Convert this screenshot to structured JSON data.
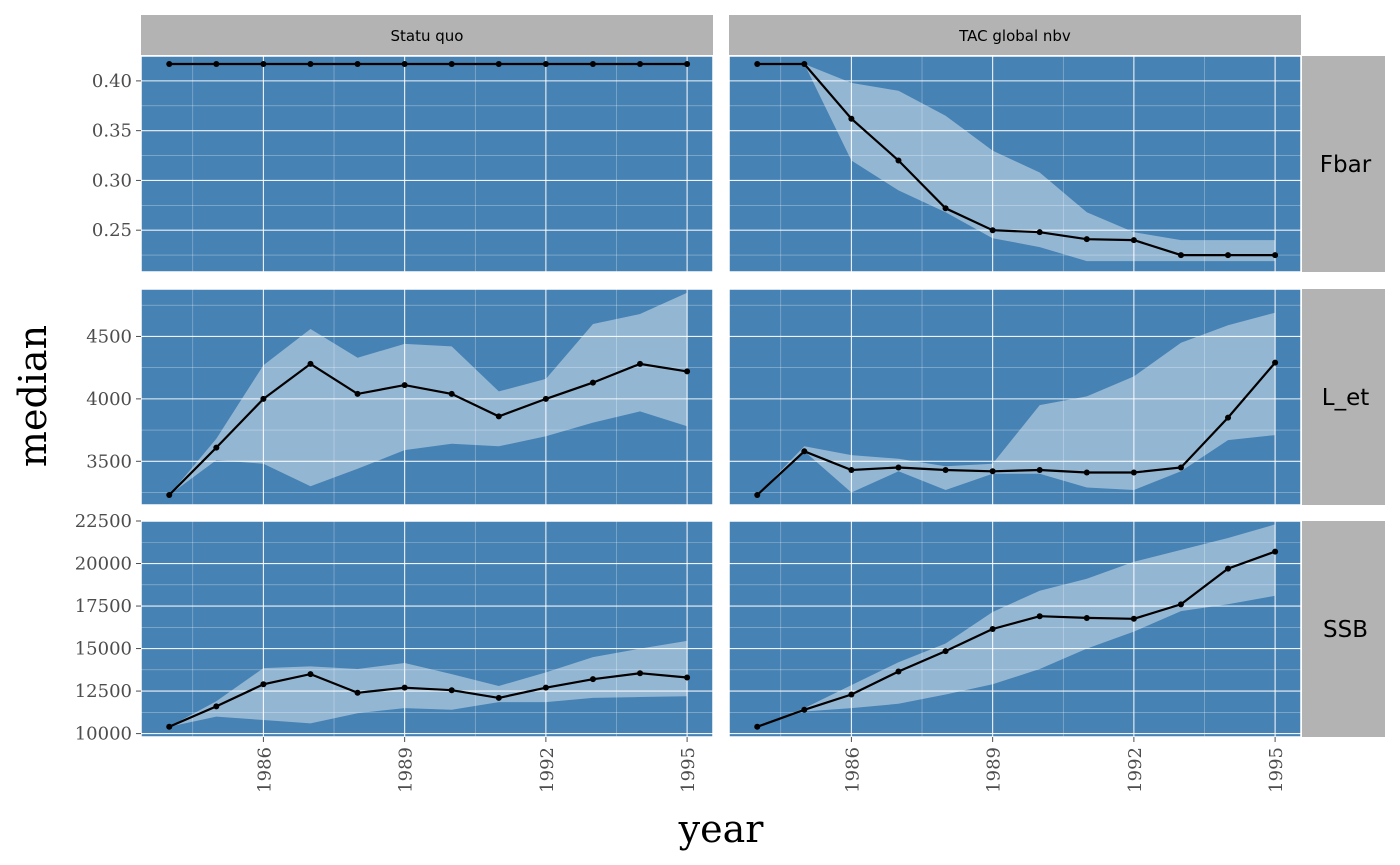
{
  "chart_data": {
    "type": "line",
    "xlabel": "year",
    "ylabel": "median",
    "columns": [
      "Statu quo",
      "TAC global nbv"
    ],
    "rows": [
      "Fbar",
      "L_et",
      "SSB"
    ],
    "x": [
      1984,
      1985,
      1986,
      1987,
      1988,
      1989,
      1990,
      1991,
      1992,
      1993,
      1994,
      1995
    ],
    "xlim": [
      1983.4,
      1995.55
    ],
    "x_ticks": [
      1986,
      1989,
      1992,
      1995
    ],
    "panel_fill": "#4682b4",
    "band_fill": "#ffffff",
    "line_color": "#000000",
    "strip_fill": "#b3b3b3",
    "grid": true,
    "panels": [
      {
        "row": "Fbar",
        "column": "Statu quo",
        "ylim": [
          0.208,
          0.425
        ],
        "y_ticks": [
          "0.25",
          "0.30",
          "0.35",
          "0.40"
        ],
        "median": [
          0.417,
          0.417,
          0.417,
          0.417,
          0.417,
          0.417,
          0.417,
          0.417,
          0.417,
          0.417,
          0.417,
          0.417
        ],
        "lower": [
          0.417,
          0.417,
          0.417,
          0.417,
          0.417,
          0.417,
          0.417,
          0.417,
          0.417,
          0.417,
          0.417,
          0.417
        ],
        "upper": [
          0.417,
          0.417,
          0.417,
          0.417,
          0.417,
          0.417,
          0.417,
          0.417,
          0.417,
          0.417,
          0.417,
          0.417
        ]
      },
      {
        "row": "Fbar",
        "column": "TAC global nbv",
        "ylim": [
          0.208,
          0.425
        ],
        "y_ticks": [
          "0.25",
          "0.30",
          "0.35",
          "0.40"
        ],
        "median": [
          0.417,
          0.417,
          0.362,
          0.32,
          0.272,
          0.25,
          0.248,
          0.241,
          0.24,
          0.225,
          0.225,
          0.225
        ],
        "lower": [
          0.417,
          0.417,
          0.32,
          0.29,
          0.268,
          0.242,
          0.233,
          0.219,
          0.219,
          0.219,
          0.219,
          0.219
        ],
        "upper": [
          0.417,
          0.417,
          0.398,
          0.39,
          0.365,
          0.33,
          0.308,
          0.268,
          0.248,
          0.24,
          0.24,
          0.24
        ]
      },
      {
        "row": "L_et",
        "column": "Statu quo",
        "ylim": [
          3150,
          4880
        ],
        "y_ticks": [
          "3500",
          "4000",
          "4500"
        ],
        "median": [
          3230,
          3610,
          4000,
          4280,
          4040,
          4110,
          4040,
          3860,
          4000,
          4130,
          4280,
          4220
        ],
        "lower": [
          3230,
          3510,
          3480,
          3300,
          3440,
          3590,
          3640,
          3620,
          3700,
          3810,
          3900,
          3780
        ],
        "upper": [
          3230,
          3680,
          4270,
          4560,
          4330,
          4440,
          4420,
          4060,
          4160,
          4600,
          4680,
          4850
        ]
      },
      {
        "row": "L_et",
        "column": "TAC global nbv",
        "ylim": [
          3150,
          4880
        ],
        "y_ticks": [
          "3500",
          "4000",
          "4500"
        ],
        "median": [
          3230,
          3580,
          3430,
          3450,
          3430,
          3420,
          3430,
          3410,
          3410,
          3450,
          3850,
          4290
        ],
        "lower": [
          3230,
          3580,
          3250,
          3420,
          3270,
          3400,
          3400,
          3290,
          3270,
          3420,
          3670,
          3710
        ],
        "upper": [
          3230,
          3620,
          3550,
          3520,
          3460,
          3480,
          3950,
          4020,
          4180,
          4450,
          4590,
          4690
        ]
      },
      {
        "row": "SSB",
        "column": "Statu quo",
        "ylim": [
          9800,
          22500
        ],
        "y_ticks": [
          "10000",
          "12500",
          "15000",
          "17500",
          "20000",
          "22500"
        ],
        "median": [
          10400,
          11600,
          12900,
          13500,
          12400,
          12700,
          12550,
          12100,
          12700,
          13200,
          13550,
          13300
        ],
        "lower": [
          10400,
          11000,
          10800,
          10600,
          11200,
          11500,
          11400,
          11850,
          11850,
          12100,
          12150,
          12200
        ],
        "upper": [
          10400,
          11900,
          13850,
          13950,
          13800,
          14150,
          13500,
          12800,
          13600,
          14500,
          15000,
          15450
        ]
      },
      {
        "row": "SSB",
        "column": "TAC global nbv",
        "ylim": [
          9800,
          22500
        ],
        "y_ticks": [
          "10000",
          "12500",
          "15000",
          "17500",
          "20000",
          "22500"
        ],
        "median": [
          10400,
          11400,
          12300,
          13650,
          14850,
          16150,
          16900,
          16800,
          16750,
          17600,
          19700,
          20700
        ],
        "lower": [
          10400,
          11300,
          11500,
          11750,
          12300,
          12900,
          13800,
          15000,
          16000,
          17200,
          17600,
          18100
        ],
        "upper": [
          10400,
          11500,
          12850,
          14200,
          15300,
          17150,
          18400,
          19100,
          20100,
          20800,
          21500,
          22300
        ]
      }
    ]
  }
}
